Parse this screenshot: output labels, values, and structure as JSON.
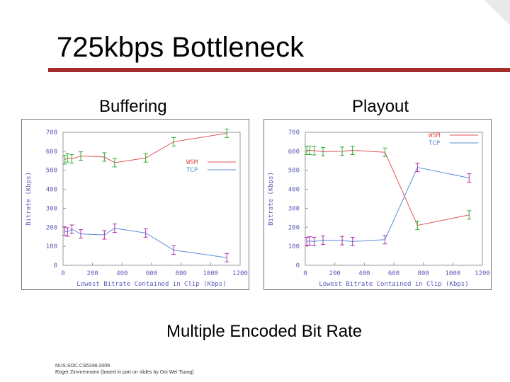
{
  "slide": {
    "title": "725kbps Bottleneck",
    "left_label": "Buffering",
    "right_label": "Playout",
    "caption": "Multiple Encoded Bit Rate",
    "footer_line1": "NUS.SOC.CS5248-2009",
    "footer_line2": "Roger Zimmermann (based in part on slides by Ooi Wei Tsang)"
  },
  "colors": {
    "wsm": "#e05555",
    "tcp": "#5a8ed8",
    "errorbar_wsm": "#33aa33",
    "errorbar_tcp": "#aa33aa",
    "rule": "#a52a2a"
  },
  "chart_data": [
    {
      "type": "line",
      "xlabel": "Lowest Bitrate Contained in Clip (Kbps)",
      "ylabel": "Bitrate (Kbps)",
      "xlim": [
        0,
        1200
      ],
      "ylim": [
        0,
        700
      ],
      "xticks": [
        0,
        200,
        400,
        600,
        800,
        1000,
        1200
      ],
      "yticks": [
        0,
        100,
        200,
        300,
        400,
        500,
        600,
        700
      ],
      "legend_position": "center-right",
      "series": [
        {
          "name": "WSM",
          "x": [
            10,
            30,
            60,
            120,
            280,
            350,
            560,
            750,
            1110
          ],
          "y": [
            555,
            565,
            560,
            575,
            570,
            540,
            565,
            650,
            695
          ]
        },
        {
          "name": "TCP",
          "x": [
            10,
            30,
            60,
            120,
            280,
            350,
            560,
            750,
            1110
          ],
          "y": [
            180,
            175,
            190,
            165,
            160,
            195,
            170,
            80,
            40
          ]
        }
      ]
    },
    {
      "type": "line",
      "xlabel": "Lowest Bitrate Contained in Clip (Kbps)",
      "ylabel": "Bitrate (Kbps)",
      "xlim": [
        0,
        1200
      ],
      "ylim": [
        0,
        700
      ],
      "xticks": [
        0,
        200,
        400,
        600,
        800,
        1000,
        1200
      ],
      "yticks": [
        0,
        100,
        200,
        300,
        400,
        500,
        600,
        700
      ],
      "legend_position": "top-right",
      "series": [
        {
          "name": "WSM",
          "x": [
            10,
            30,
            60,
            120,
            250,
            320,
            540,
            760,
            1110
          ],
          "y": [
            605,
            605,
            603,
            598,
            600,
            605,
            595,
            210,
            265
          ]
        },
        {
          "name": "TCP",
          "x": [
            10,
            30,
            60,
            120,
            250,
            320,
            540,
            760,
            1110
          ],
          "y": [
            125,
            128,
            125,
            132,
            130,
            125,
            135,
            515,
            460
          ]
        }
      ]
    }
  ]
}
